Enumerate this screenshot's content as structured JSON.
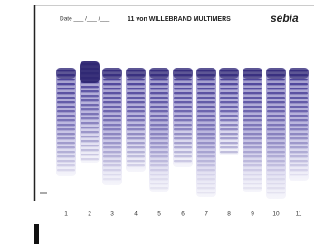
{
  "header": {
    "date_label": "Date ___ /___ /___",
    "title": "11 von WILLEBRAND MULTIMERS",
    "brand": "sebia"
  },
  "lanes": {
    "labels": [
      "1",
      "2",
      "3",
      "4",
      "5",
      "6",
      "7",
      "8",
      "9",
      "10",
      "11"
    ]
  }
}
